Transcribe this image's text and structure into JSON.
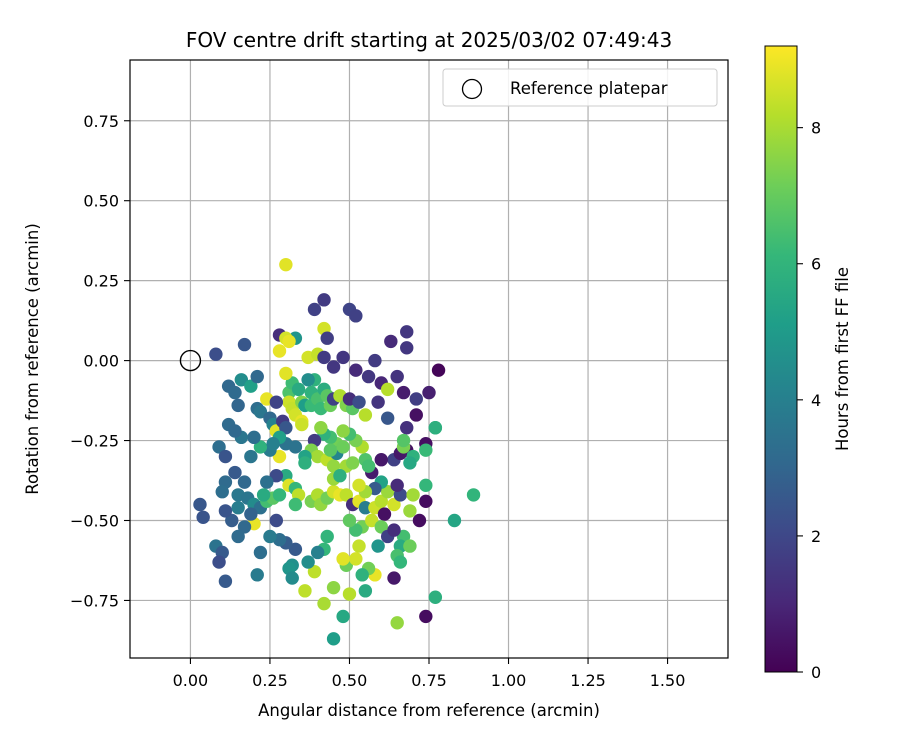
{
  "chart_data": {
    "type": "scatter",
    "title": "FOV centre drift starting at 2025/03/02 07:49:43",
    "xlabel": "Angular distance from reference (arcmin)",
    "ylabel": "Rotation from reference (arcmin)",
    "xlim": [
      -0.19,
      1.69
    ],
    "ylim": [
      -0.93,
      0.94
    ],
    "x_ticks": [
      "0.00",
      "0.25",
      "0.50",
      "0.75",
      "1.00",
      "1.25",
      "1.50"
    ],
    "x_tick_values": [
      0,
      0.25,
      0.5,
      0.75,
      1.0,
      1.25,
      1.5
    ],
    "y_ticks": [
      "0.75",
      "0.50",
      "0.25",
      "0.00",
      "−0.25",
      "−0.50",
      "−0.75"
    ],
    "y_tick_values": [
      0.75,
      0.5,
      0.25,
      0,
      -0.25,
      -0.5,
      -0.75
    ],
    "grid": true,
    "legend": {
      "position": "top-right",
      "entries": [
        {
          "label": "Reference platepar",
          "marker": "open-circle",
          "x": 0,
          "y": 0
        }
      ]
    },
    "colorbar": {
      "label": "Hours from first FF file",
      "range": [
        0,
        9.2
      ],
      "ticks": [
        "0",
        "2",
        "4",
        "6",
        "8"
      ],
      "tick_values": [
        0,
        2,
        4,
        6,
        8
      ],
      "colormap": [
        "#440154",
        "#482878",
        "#3e4989",
        "#31688e",
        "#26828e",
        "#1f9e89",
        "#35b779",
        "#6ece58",
        "#b5de2b",
        "#fde725"
      ]
    },
    "series": [
      {
        "color_by": "hours",
        "points": [
          [
            0.3,
            0.3,
            8.8
          ],
          [
            0.42,
            0.19,
            1.6
          ],
          [
            0.5,
            0.16,
            1.9
          ],
          [
            0.52,
            0.14,
            1.8
          ],
          [
            0.39,
            0.16,
            1.8
          ],
          [
            0.28,
            0.08,
            1.2
          ],
          [
            0.33,
            0.07,
            4.8
          ],
          [
            0.42,
            0.1,
            8.6
          ],
          [
            0.43,
            0.07,
            1.7
          ],
          [
            0.48,
            0.01,
            1.5
          ],
          [
            0.58,
            0.0,
            1.6
          ],
          [
            0.63,
            0.06,
            1.1
          ],
          [
            0.68,
            0.09,
            1.5
          ],
          [
            0.68,
            0.04,
            1.5
          ],
          [
            0.78,
            -0.03,
            0.1
          ],
          [
            0.3,
            0.07,
            8.6
          ],
          [
            0.31,
            0.06,
            8.9
          ],
          [
            0.28,
            0.03,
            8.9
          ],
          [
            0.37,
            0.01,
            8.6
          ],
          [
            0.4,
            0.02,
            8.4
          ],
          [
            0.42,
            0.01,
            1.6
          ],
          [
            0.45,
            -0.02,
            1.5
          ],
          [
            0.52,
            -0.03,
            1.1
          ],
          [
            0.56,
            -0.05,
            1.5
          ],
          [
            0.6,
            -0.07,
            1.0
          ],
          [
            0.67,
            -0.1,
            0.7
          ],
          [
            0.71,
            -0.12,
            1.7
          ],
          [
            0.75,
            -0.1,
            0.8
          ],
          [
            0.62,
            -0.09,
            8.2
          ],
          [
            0.65,
            -0.05,
            1.4
          ],
          [
            0.08,
            0.02,
            2.2
          ],
          [
            0.17,
            0.05,
            2.5
          ],
          [
            0.12,
            -0.08,
            3.1
          ],
          [
            0.14,
            -0.1,
            3.2
          ],
          [
            0.16,
            -0.06,
            4.5
          ],
          [
            0.19,
            -0.08,
            5.2
          ],
          [
            0.21,
            -0.05,
            3.1
          ],
          [
            0.15,
            -0.14,
            3.0
          ],
          [
            0.12,
            -0.2,
            3.2
          ],
          [
            0.24,
            -0.12,
            8.9
          ],
          [
            0.21,
            -0.15,
            3.3
          ],
          [
            0.22,
            -0.16,
            3.6
          ],
          [
            0.25,
            -0.18,
            3.1
          ],
          [
            0.26,
            -0.2,
            4.1
          ],
          [
            0.27,
            -0.22,
            8.8
          ],
          [
            0.29,
            -0.19,
            1.6
          ],
          [
            0.31,
            -0.1,
            6.6
          ],
          [
            0.32,
            -0.07,
            6.3
          ],
          [
            0.34,
            -0.09,
            5.6
          ],
          [
            0.3,
            -0.04,
            8.8
          ],
          [
            0.31,
            -0.13,
            8.5
          ],
          [
            0.32,
            -0.15,
            8.4
          ],
          [
            0.33,
            -0.17,
            8.6
          ],
          [
            0.35,
            -0.19,
            8.9
          ],
          [
            0.35,
            -0.13,
            7.4
          ],
          [
            0.36,
            -0.14,
            5.1
          ],
          [
            0.38,
            -0.1,
            5.9
          ],
          [
            0.38,
            -0.14,
            6.2
          ],
          [
            0.39,
            -0.06,
            5.9
          ],
          [
            0.4,
            -0.12,
            6.5
          ],
          [
            0.41,
            -0.15,
            6.2
          ],
          [
            0.42,
            -0.09,
            5.7
          ],
          [
            0.43,
            -0.11,
            6.8
          ],
          [
            0.44,
            -0.14,
            7.1
          ],
          [
            0.45,
            -0.12,
            1.8
          ],
          [
            0.47,
            -0.11,
            8.1
          ],
          [
            0.49,
            -0.14,
            7.4
          ],
          [
            0.51,
            -0.15,
            6.8
          ],
          [
            0.5,
            -0.12,
            1.2
          ],
          [
            0.53,
            -0.13,
            2.2
          ],
          [
            0.55,
            -0.17,
            8.2
          ],
          [
            0.59,
            -0.13,
            1.4
          ],
          [
            0.62,
            -0.18,
            2.5
          ],
          [
            0.68,
            -0.21,
            1.3
          ],
          [
            0.71,
            -0.17,
            0.4
          ],
          [
            0.77,
            -0.21,
            5.8
          ],
          [
            0.74,
            -0.26,
            0.4
          ],
          [
            0.68,
            -0.28,
            0.4
          ],
          [
            0.7,
            -0.3,
            5.9
          ],
          [
            0.69,
            -0.32,
            5.5
          ],
          [
            0.64,
            -0.31,
            1.8
          ],
          [
            0.66,
            -0.29,
            0.6
          ],
          [
            0.67,
            -0.27,
            7.3
          ],
          [
            0.67,
            -0.25,
            6.7
          ],
          [
            0.6,
            -0.31,
            0.6
          ],
          [
            0.57,
            -0.35,
            0.7
          ],
          [
            0.55,
            -0.31,
            6.6
          ],
          [
            0.54,
            -0.27,
            8.1
          ],
          [
            0.52,
            -0.25,
            7.3
          ],
          [
            0.5,
            -0.23,
            6.4
          ],
          [
            0.48,
            -0.22,
            7.6
          ],
          [
            0.46,
            -0.26,
            7.2
          ],
          [
            0.44,
            -0.24,
            6.4
          ],
          [
            0.42,
            -0.23,
            5.9
          ],
          [
            0.41,
            -0.21,
            7.6
          ],
          [
            0.39,
            -0.25,
            1.6
          ],
          [
            0.38,
            -0.28,
            7.4
          ],
          [
            0.4,
            -0.3,
            7.9
          ],
          [
            0.43,
            -0.31,
            8.3
          ],
          [
            0.45,
            -0.33,
            7.7
          ],
          [
            0.49,
            -0.33,
            7.9
          ],
          [
            0.51,
            -0.32,
            7.4
          ],
          [
            0.36,
            -0.3,
            5.3
          ],
          [
            0.36,
            -0.32,
            5.8
          ],
          [
            0.33,
            -0.27,
            3.5
          ],
          [
            0.3,
            -0.26,
            3.5
          ],
          [
            0.28,
            -0.3,
            8.9
          ],
          [
            0.25,
            -0.28,
            3.8
          ],
          [
            0.22,
            -0.27,
            5.9
          ],
          [
            0.19,
            -0.3,
            3.6
          ],
          [
            0.2,
            -0.24,
            3.3
          ],
          [
            0.16,
            -0.24,
            3.6
          ],
          [
            0.14,
            -0.22,
            3.1
          ],
          [
            0.09,
            -0.27,
            3.3
          ],
          [
            0.11,
            -0.3,
            2.4
          ],
          [
            0.14,
            -0.35,
            2.6
          ],
          [
            0.17,
            -0.38,
            3.1
          ],
          [
            0.11,
            -0.38,
            3.2
          ],
          [
            0.1,
            -0.41,
            3.3
          ],
          [
            0.15,
            -0.42,
            3.7
          ],
          [
            0.18,
            -0.43,
            3.6
          ],
          [
            0.2,
            -0.45,
            4.4
          ],
          [
            0.22,
            -0.46,
            3.4
          ],
          [
            0.24,
            -0.44,
            6.4
          ],
          [
            0.26,
            -0.43,
            6.8
          ],
          [
            0.28,
            -0.42,
            6.1
          ],
          [
            0.3,
            -0.36,
            5.6
          ],
          [
            0.31,
            -0.39,
            8.7
          ],
          [
            0.33,
            -0.4,
            6.1
          ],
          [
            0.34,
            -0.42,
            8.3
          ],
          [
            0.33,
            -0.45,
            6.3
          ],
          [
            0.38,
            -0.44,
            7.3
          ],
          [
            0.4,
            -0.42,
            8.1
          ],
          [
            0.41,
            -0.45,
            7.7
          ],
          [
            0.43,
            -0.43,
            7.2
          ],
          [
            0.45,
            -0.41,
            8.6
          ],
          [
            0.47,
            -0.42,
            8.9
          ],
          [
            0.49,
            -0.42,
            8.3
          ],
          [
            0.51,
            -0.45,
            1.2
          ],
          [
            0.53,
            -0.44,
            8.8
          ],
          [
            0.55,
            -0.46,
            3.9
          ],
          [
            0.58,
            -0.46,
            8.5
          ],
          [
            0.6,
            -0.44,
            8.2
          ],
          [
            0.62,
            -0.41,
            7.8
          ],
          [
            0.61,
            -0.48,
            0.4
          ],
          [
            0.64,
            -0.45,
            8.6
          ],
          [
            0.66,
            -0.42,
            2.1
          ],
          [
            0.65,
            -0.39,
            1.1
          ],
          [
            0.7,
            -0.42,
            7.9
          ],
          [
            0.74,
            -0.44,
            0.3
          ],
          [
            0.69,
            -0.47,
            7.8
          ],
          [
            0.72,
            -0.5,
            0.3
          ],
          [
            0.74,
            -0.39,
            6.1
          ],
          [
            0.89,
            -0.42,
            6.0
          ],
          [
            0.83,
            -0.5,
            5.4
          ],
          [
            0.67,
            -0.55,
            6.4
          ],
          [
            0.66,
            -0.58,
            5.6
          ],
          [
            0.69,
            -0.58,
            7.1
          ],
          [
            0.65,
            -0.61,
            6.5
          ],
          [
            0.66,
            -0.63,
            6.1
          ],
          [
            0.77,
            -0.74,
            5.8
          ],
          [
            0.74,
            -0.8,
            0.3
          ],
          [
            0.64,
            -0.68,
            0.6
          ],
          [
            0.65,
            -0.82,
            7.7
          ],
          [
            0.58,
            -0.67,
            8.9
          ],
          [
            0.56,
            -0.65,
            7.2
          ],
          [
            0.55,
            -0.72,
            5.6
          ],
          [
            0.54,
            -0.67,
            5.9
          ],
          [
            0.53,
            -0.58,
            8.4
          ],
          [
            0.54,
            -0.52,
            7.2
          ],
          [
            0.52,
            -0.53,
            6.4
          ],
          [
            0.5,
            -0.5,
            6.9
          ],
          [
            0.49,
            -0.64,
            7.1
          ],
          [
            0.48,
            -0.62,
            8.8
          ],
          [
            0.5,
            -0.73,
            8.2
          ],
          [
            0.48,
            -0.8,
            5.5
          ],
          [
            0.45,
            -0.71,
            7.6
          ],
          [
            0.45,
            -0.87,
            5.1
          ],
          [
            0.42,
            -0.76,
            8.0
          ],
          [
            0.42,
            -0.59,
            6.1
          ],
          [
            0.43,
            -0.55,
            6.0
          ],
          [
            0.4,
            -0.6,
            4.0
          ],
          [
            0.39,
            -0.66,
            8.3
          ],
          [
            0.37,
            -0.63,
            4.5
          ],
          [
            0.36,
            -0.72,
            8.3
          ],
          [
            0.33,
            -0.59,
            2.6
          ],
          [
            0.32,
            -0.64,
            4.6
          ],
          [
            0.31,
            -0.65,
            4.8
          ],
          [
            0.32,
            -0.68,
            4.4
          ],
          [
            0.3,
            -0.57,
            2.7
          ],
          [
            0.28,
            -0.56,
            3.3
          ],
          [
            0.27,
            -0.5,
            2.1
          ],
          [
            0.25,
            -0.55,
            3.8
          ],
          [
            0.22,
            -0.6,
            3.3
          ],
          [
            0.21,
            -0.67,
            3.8
          ],
          [
            0.2,
            -0.51,
            8.9
          ],
          [
            0.19,
            -0.48,
            2.9
          ],
          [
            0.17,
            -0.52,
            3.1
          ],
          [
            0.15,
            -0.55,
            3.2
          ],
          [
            0.13,
            -0.5,
            2.7
          ],
          [
            0.11,
            -0.47,
            2.4
          ],
          [
            0.08,
            -0.58,
            3.5
          ],
          [
            0.1,
            -0.6,
            2.6
          ],
          [
            0.09,
            -0.63,
            2.2
          ],
          [
            0.11,
            -0.69,
            2.6
          ],
          [
            0.03,
            -0.45,
            2.5
          ],
          [
            0.04,
            -0.49,
            2.4
          ],
          [
            0.52,
            -0.62,
            8.6
          ],
          [
            0.57,
            -0.5,
            8.4
          ],
          [
            0.6,
            -0.52,
            7.1
          ],
          [
            0.59,
            -0.58,
            4.8
          ],
          [
            0.62,
            -0.55,
            1.8
          ],
          [
            0.64,
            -0.53,
            1.2
          ],
          [
            0.77,
            -0.21,
            5.8
          ],
          [
            0.74,
            -0.28,
            6.2
          ],
          [
            0.56,
            -0.33,
            6.4
          ],
          [
            0.6,
            -0.38,
            5.3
          ],
          [
            0.58,
            -0.4,
            2.6
          ],
          [
            0.55,
            -0.41,
            7.9
          ],
          [
            0.53,
            -0.39,
            8.6
          ],
          [
            0.45,
            -0.37,
            7.8
          ],
          [
            0.47,
            -0.36,
            5.8
          ],
          [
            0.46,
            -0.29,
            4.2
          ],
          [
            0.44,
            -0.28,
            6.8
          ],
          [
            0.48,
            -0.27,
            7.1
          ],
          [
            0.27,
            -0.36,
            2.1
          ],
          [
            0.24,
            -0.38,
            3.4
          ],
          [
            0.27,
            -0.13,
            1.9
          ],
          [
            0.23,
            -0.42,
            5.6
          ],
          [
            0.15,
            -0.46,
            3.9
          ],
          [
            0.35,
            -0.2,
            8.5
          ],
          [
            0.3,
            -0.21,
            2.5
          ],
          [
            0.28,
            -0.24,
            5.2
          ],
          [
            0.26,
            -0.26,
            4.0
          ],
          [
            0.37,
            -0.06,
            4.5
          ]
        ]
      }
    ]
  }
}
